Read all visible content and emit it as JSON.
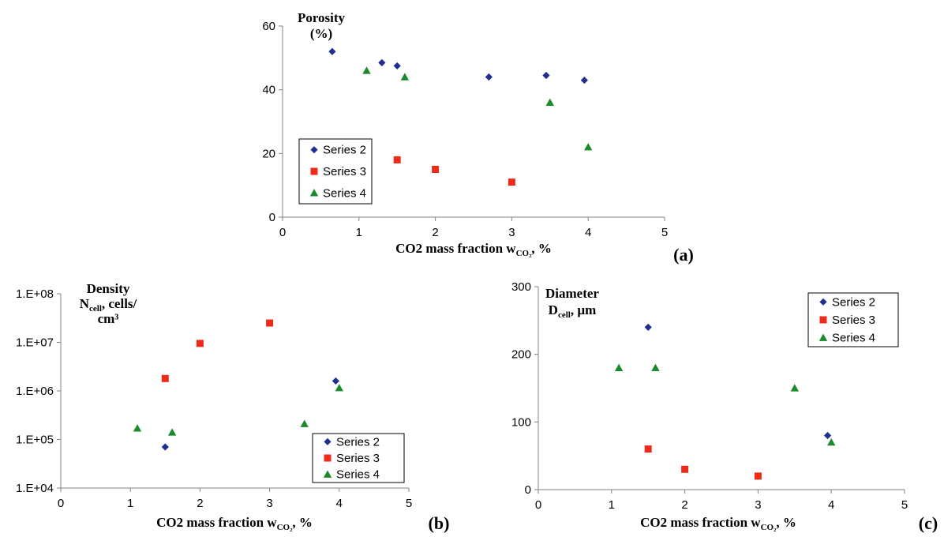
{
  "colors": {
    "Series 2": "#1f2f8f",
    "Series 3": "#ee2a1b",
    "Series 4": "#1a8a2a",
    "axis": "#808080"
  },
  "chart_data": [
    {
      "type": "scatter",
      "panel_label": "(a)",
      "title": "",
      "ylabel_lines": [
        "Porosity",
        "(%)"
      ],
      "xlabel": {
        "main": "CO2 mass fraction w",
        "sub": "CO₂",
        "suffix": ", %"
      },
      "xlim": [
        0,
        5
      ],
      "ylim": [
        0,
        60
      ],
      "yscale": "linear",
      "xticks": [
        0,
        1,
        2,
        3,
        4,
        5
      ],
      "xtick_labels": [
        "0",
        "1",
        "2",
        "3",
        "4",
        "5"
      ],
      "yticks": [
        0,
        20,
        40,
        60
      ],
      "ytick_labels": [
        "0",
        "20",
        "40",
        "60"
      ],
      "legend_position": "bottom-left",
      "series": [
        {
          "name": "Series 2",
          "marker": "diamond",
          "x": [
            0.65,
            1.3,
            1.5,
            2.7,
            3.45,
            3.95
          ],
          "y": [
            52,
            48.5,
            47.5,
            44,
            44.5,
            43
          ]
        },
        {
          "name": "Series 3",
          "marker": "square",
          "x": [
            1.5,
            2.0,
            3.0
          ],
          "y": [
            18,
            15,
            11
          ]
        },
        {
          "name": "Series 4",
          "marker": "triangle",
          "x": [
            1.1,
            1.6,
            3.5,
            4.0
          ],
          "y": [
            46,
            44,
            36,
            22
          ]
        }
      ]
    },
    {
      "type": "scatter",
      "panel_label": "(b)",
      "title": "",
      "ylabel_lines": [
        "Density",
        "N|cell|, cells/",
        "cm³"
      ],
      "xlabel": {
        "main": "CO2 mass fraction w",
        "sub": "CO₂",
        "suffix": ", %"
      },
      "xlim": [
        0,
        5
      ],
      "ylim": [
        10000,
        100000000
      ],
      "yscale": "log",
      "xticks": [
        0,
        1,
        2,
        3,
        4,
        5
      ],
      "xtick_labels": [
        "0",
        "1",
        "2",
        "3",
        "4",
        "5"
      ],
      "yticks": [
        10000,
        100000,
        1000000,
        10000000,
        100000000
      ],
      "ytick_labels": [
        "1.E+04",
        "1.E+05",
        "1.E+06",
        "1.E+07",
        "1.E+08"
      ],
      "legend_position": "bottom-right",
      "series": [
        {
          "name": "Series 2",
          "marker": "diamond",
          "x": [
            1.5,
            3.95
          ],
          "y": [
            70000,
            1600000
          ]
        },
        {
          "name": "Series 3",
          "marker": "square",
          "x": [
            1.5,
            2.0,
            3.0
          ],
          "y": [
            1800000,
            9500000,
            25000000
          ]
        },
        {
          "name": "Series 4",
          "marker": "triangle",
          "x": [
            1.1,
            1.6,
            3.5,
            4.0
          ],
          "y": [
            170000,
            140000,
            210000,
            1150000
          ]
        }
      ]
    },
    {
      "type": "scatter",
      "panel_label": "(c)",
      "title": "",
      "ylabel_lines": [
        "Diameter",
        "D|cell|, µm"
      ],
      "xlabel": {
        "main": "CO2 mass fraction w",
        "sub": "CO₂",
        "suffix": ", %"
      },
      "xlim": [
        0,
        5
      ],
      "ylim": [
        0,
        300
      ],
      "yscale": "linear",
      "xticks": [
        0,
        1,
        2,
        3,
        4,
        5
      ],
      "xtick_labels": [
        "0",
        "1",
        "2",
        "3",
        "4",
        "5"
      ],
      "yticks": [
        0,
        100,
        200,
        300
      ],
      "ytick_labels": [
        "0",
        "100",
        "200",
        "300"
      ],
      "legend_position": "top-right",
      "series": [
        {
          "name": "Series 2",
          "marker": "diamond",
          "x": [
            1.5,
            3.95
          ],
          "y": [
            240,
            80
          ]
        },
        {
          "name": "Series 3",
          "marker": "square",
          "x": [
            1.5,
            2.0,
            3.0
          ],
          "y": [
            60,
            30,
            20
          ]
        },
        {
          "name": "Series 4",
          "marker": "triangle",
          "x": [
            1.1,
            1.6,
            3.5,
            4.0
          ],
          "y": [
            180,
            180,
            150,
            70
          ]
        }
      ]
    }
  ]
}
